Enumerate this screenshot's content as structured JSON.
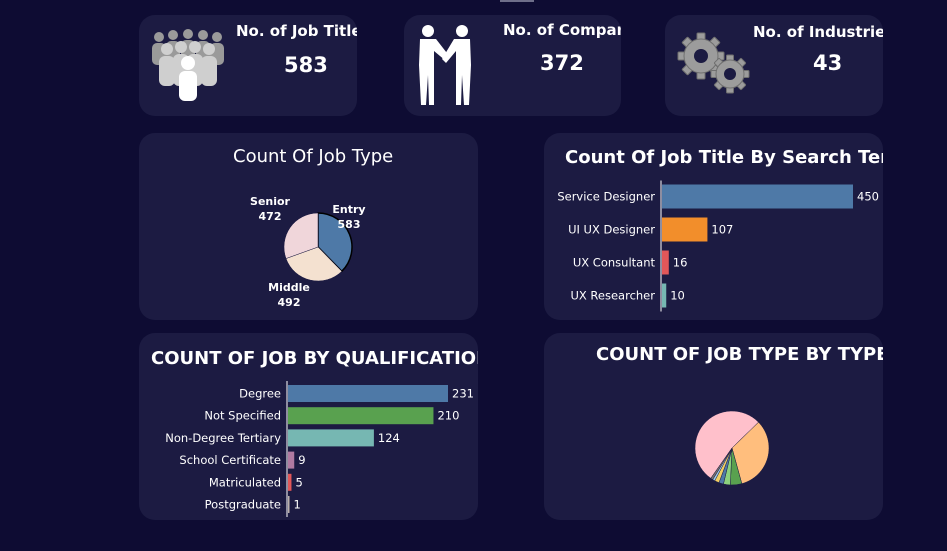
{
  "kpis": {
    "job_titles": {
      "title": "No. of Job Titles",
      "value": "583",
      "icon": "people-group-icon"
    },
    "companies": {
      "title": "No. of Companies",
      "value": "372",
      "icon": "handshake-icon"
    },
    "industries": {
      "title": "No. of Industries",
      "value": "43",
      "icon": "gears-icon"
    }
  },
  "chart_data": [
    {
      "id": "job_type",
      "type": "pie",
      "title": "Count Of Job Type",
      "labels": [
        "Entry",
        "Middle",
        "Senior"
      ],
      "values": [
        583,
        492,
        472
      ],
      "colors": [
        "#4e79a7",
        "#f4e1d0",
        "#f0d6da"
      ]
    },
    {
      "id": "search_term",
      "type": "bar",
      "orientation": "horizontal",
      "title": "Count Of Job Title By Search Term",
      "categories": [
        "Service Designer",
        "UI UX Designer",
        "UX Consultant",
        "UX Researcher"
      ],
      "values": [
        450,
        107,
        16,
        10
      ],
      "colors": [
        "#4e79a7",
        "#f28e2b",
        "#e15759",
        "#76b7b2"
      ]
    },
    {
      "id": "qualification",
      "type": "bar",
      "orientation": "horizontal",
      "title": "COUNT OF JOB BY QUALIFICATION",
      "categories": [
        "Degree",
        "Not Specified",
        "Non-Degree Tertiary",
        "School Certificate",
        "Matriculated",
        "Postgraduate"
      ],
      "values": [
        231,
        210,
        124,
        9,
        5,
        1
      ],
      "colors": [
        "#4e79a7",
        "#59a14f",
        "#76b7b2",
        "#b07aa1",
        "#e15759",
        "#bab0ac"
      ]
    },
    {
      "id": "job_type_by_type",
      "type": "pie",
      "title": "COUNT OF JOB TYPE BY TYPE",
      "values": [
        53,
        33,
        5,
        3,
        2,
        2,
        1,
        1
      ],
      "colors": [
        "#ffc0cb",
        "#ffbe7d",
        "#59a14f",
        "#8cd17d",
        "#4e79a7",
        "#f1ce63",
        "#a0cbe8",
        "#79706e"
      ]
    }
  ]
}
